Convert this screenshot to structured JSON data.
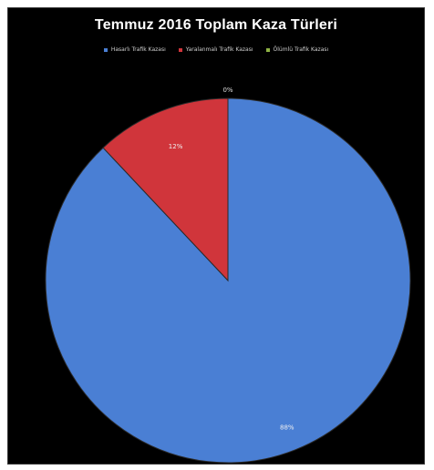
{
  "chart_data": {
    "type": "pie",
    "title": "Temmuz 2016 Toplam Kaza Türleri",
    "categories": [
      "Hasarlı Trafik Kazası",
      "Yaralanmalı Trafik Kazası",
      "Ölümlü Trafik Kazası"
    ],
    "values": [
      88,
      12,
      0
    ],
    "data_labels": [
      "88%",
      "12%",
      "0%"
    ],
    "colors": [
      "#4a7fd4",
      "#d0353b",
      "#8fb345"
    ],
    "legend_position": "top"
  }
}
